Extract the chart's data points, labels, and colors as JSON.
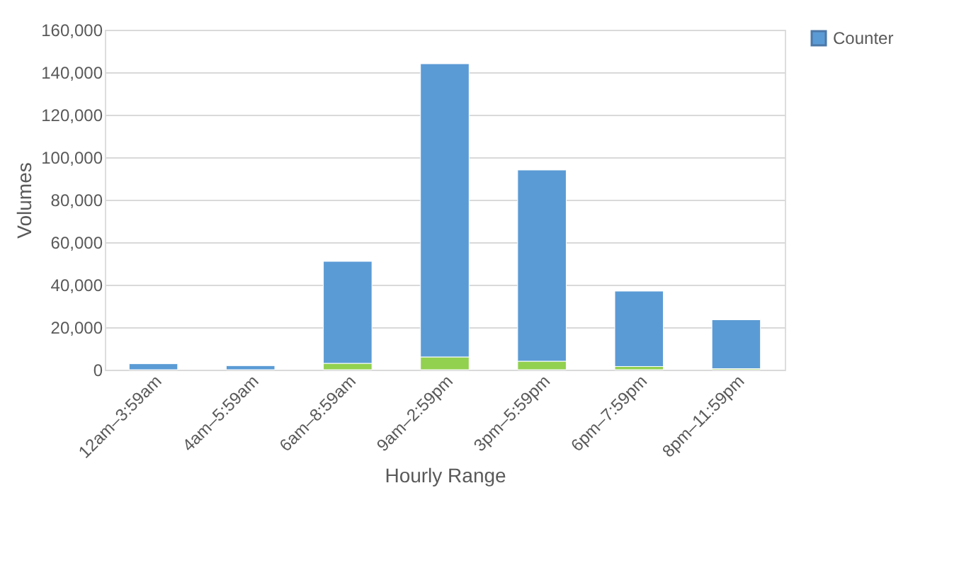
{
  "chart_data": {
    "type": "bar",
    "stacked": true,
    "xlabel": "Hourly Range",
    "ylabel": "Volumes",
    "categories": [
      "12am–3:59am",
      "4am–5:59am",
      "6am–8:59am",
      "9am–2:59pm",
      "3pm–5:59pm",
      "6pm–7:59pm",
      "8pm–11:59pm"
    ],
    "series": [
      {
        "color": "#92d050",
        "values": [
          null,
          null,
          3000,
          6000,
          4000,
          1500,
          500
        ]
      },
      {
        "name": "Counter",
        "color": "#5b9bd5",
        "values": [
          2800,
          1900,
          48000,
          138000,
          90000,
          35500,
          23000
        ]
      }
    ],
    "ylim": [
      0,
      160000
    ],
    "yticks": [
      0,
      {
        "value": 20000,
        "label": "20,000"
      },
      {
        "value": 40000,
        "label": "40,000"
      },
      {
        "value": 60000,
        "label": "60,000"
      },
      {
        "value": 80000,
        "label": "80,000"
      },
      {
        "value": 100000,
        "label": "100,000"
      },
      {
        "value": 120000,
        "label": "120,000"
      },
      {
        "value": 140000,
        "label": "140,000"
      },
      {
        "value": 160000,
        "label": "160,000"
      }
    ],
    "grid": "y",
    "legend": "right"
  }
}
